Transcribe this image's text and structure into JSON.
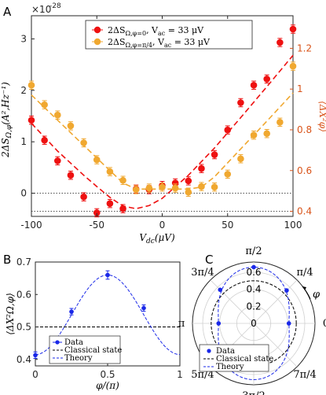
{
  "chart_data": [
    {
      "panel_label": "A",
      "type": "scatter",
      "exponent_label": "×10",
      "exponent_power": "-28",
      "xlabel": "V",
      "xlabel_sub": "dc",
      "xlabel_unit": "(μV)",
      "ylabel": "2ΔS",
      "ylabel_sub": "Ω,φ",
      "ylabel_unit": "(A²,Hz⁻¹)",
      "ylabel_right": "⟨ΔX²φ⟩",
      "xlim": [
        -100,
        100
      ],
      "ylim": [
        -0.45,
        3.45
      ],
      "ylim_right": [
        0.375,
        1.36
      ],
      "xticks": [
        -100,
        -50,
        0,
        50,
        100
      ],
      "xtick_labels": [
        "-100",
        "-50",
        "0",
        "50",
        "100"
      ],
      "yticks": [
        0,
        1,
        2,
        3
      ],
      "ytick_labels": [
        "0",
        "1",
        "2",
        "3"
      ],
      "yticks_right": [
        0.4,
        0.6,
        0.8,
        1.0,
        1.2
      ],
      "ytick_labels_right": [
        "0.4",
        "0.6",
        "0.8",
        "1",
        "1.2"
      ],
      "hlines": [
        0.0,
        -0.35
      ],
      "legend_position": "top-right",
      "legend": [
        {
          "main": "2ΔS",
          "sub": "Ω,φ=0",
          "rest": ", V",
          "sub2": "ac",
          "rest2": " = 33 μV"
        },
        {
          "main": "2ΔS",
          "sub": "Ω,φ=π/4",
          "rest": ", V",
          "sub2": "ac",
          "rest2": " = 33 μV"
        }
      ],
      "series": [
        {
          "color": "#ee1111",
          "x": [
            -100,
            -90,
            -80,
            -70,
            -60,
            -50,
            -40,
            -30,
            -20,
            -10,
            0,
            10,
            20,
            30,
            40,
            50,
            60,
            70,
            80,
            90,
            100
          ],
          "y": [
            1.42,
            1.03,
            0.63,
            0.35,
            -0.07,
            -0.38,
            -0.2,
            -0.3,
            0.08,
            0.07,
            0.15,
            0.2,
            0.24,
            0.48,
            0.75,
            1.23,
            1.76,
            2.1,
            2.22,
            2.93,
            3.19
          ],
          "err": [
            0.08,
            0.08,
            0.08,
            0.08,
            0.08,
            0.08,
            0.08,
            0.08,
            0.08,
            0.08,
            0.08,
            0.08,
            0.08,
            0.08,
            0.08,
            0.08,
            0.08,
            0.08,
            0.08,
            0.08,
            0.08
          ],
          "fit_x": [
            -100,
            -80,
            -60,
            -50,
            -40,
            -30,
            -20,
            -10,
            0,
            20,
            40,
            60,
            80,
            100
          ],
          "fit_y": [
            1.36,
            0.82,
            0.35,
            0.13,
            -0.08,
            -0.25,
            -0.3,
            -0.24,
            -0.1,
            0.35,
            0.88,
            1.47,
            2.07,
            2.68
          ]
        },
        {
          "color": "#f0a830",
          "x": [
            -100,
            -90,
            -80,
            -70,
            -60,
            -50,
            -40,
            -30,
            -20,
            -10,
            0,
            10,
            20,
            30,
            40,
            50,
            60,
            70,
            80,
            90,
            100
          ],
          "y": [
            2.1,
            1.72,
            1.52,
            1.31,
            0.98,
            0.65,
            0.42,
            0.25,
            0.07,
            0.1,
            0.12,
            0.1,
            0.02,
            0.13,
            0.12,
            0.37,
            0.67,
            1.13,
            1.16,
            1.38,
            2.47
          ],
          "err": [
            0.08,
            0.08,
            0.08,
            0.08,
            0.08,
            0.08,
            0.08,
            0.08,
            0.08,
            0.08,
            0.08,
            0.08,
            0.08,
            0.08,
            0.08,
            0.08,
            0.08,
            0.08,
            0.08,
            0.08,
            0.08
          ],
          "fit_x": [
            -100,
            -80,
            -60,
            -40,
            -30,
            -20,
            -10,
            0,
            10,
            20,
            30,
            40,
            60,
            80,
            100
          ],
          "fit_y": [
            1.91,
            1.42,
            0.93,
            0.44,
            0.2,
            0.08,
            0.08,
            0.08,
            0.08,
            0.08,
            0.12,
            0.32,
            0.86,
            1.4,
            1.95
          ]
        }
      ]
    },
    {
      "panel_label": "B",
      "type": "scatter",
      "xlabel": "φ/(π)",
      "ylabel": "⟨ΔX²Ω,φ⟩",
      "xlim": [
        0,
        1
      ],
      "ylim": [
        0.38,
        0.7
      ],
      "xticks": [
        0,
        0.5,
        1
      ],
      "xtick_labels": [
        "0",
        "0.5",
        "1"
      ],
      "yticks": [
        0.4,
        0.5,
        0.6,
        0.7
      ],
      "ytick_labels": [
        "0.4",
        "0.5",
        "0.6",
        "0.7"
      ],
      "legend_position": "bottom-left",
      "legend": [
        "Data",
        "Classical state",
        "Theory"
      ],
      "classical_level": 0.5,
      "theory": {
        "center": 0.5,
        "offset": 0.415,
        "amplitude": 0.245
      },
      "data": {
        "x": [
          0,
          0.25,
          0.5,
          0.75
        ],
        "y": [
          0.413,
          0.547,
          0.66,
          0.558
        ],
        "err": [
          0.01,
          0.01,
          0.013,
          0.01
        ]
      }
    },
    {
      "panel_label": "C",
      "type": "polar",
      "angle_symbol": "φ",
      "angle_labels": [
        "0",
        "π/4",
        "π/2",
        "3π/4",
        "π",
        "5π/4",
        "3π/2",
        "7π/4"
      ],
      "rticks": [
        0,
        0.2,
        0.4,
        0.6
      ],
      "rtick_labels": [
        "0",
        "0.2",
        "0.4",
        "0.6"
      ],
      "rmax": 0.72,
      "legend_position": "bottom-left",
      "legend": [
        "Data",
        "Classical state",
        "Theory"
      ],
      "classical_radius": 0.5,
      "theory": {
        "center": 1.5707963,
        "offset": 0.415,
        "amplitude": 0.245
      },
      "data": {
        "theta": [
          0,
          0.785398,
          1.570796,
          2.356194,
          3.141593
        ],
        "r": [
          0.413,
          0.547,
          0.66,
          0.558,
          0.413
        ]
      }
    }
  ]
}
